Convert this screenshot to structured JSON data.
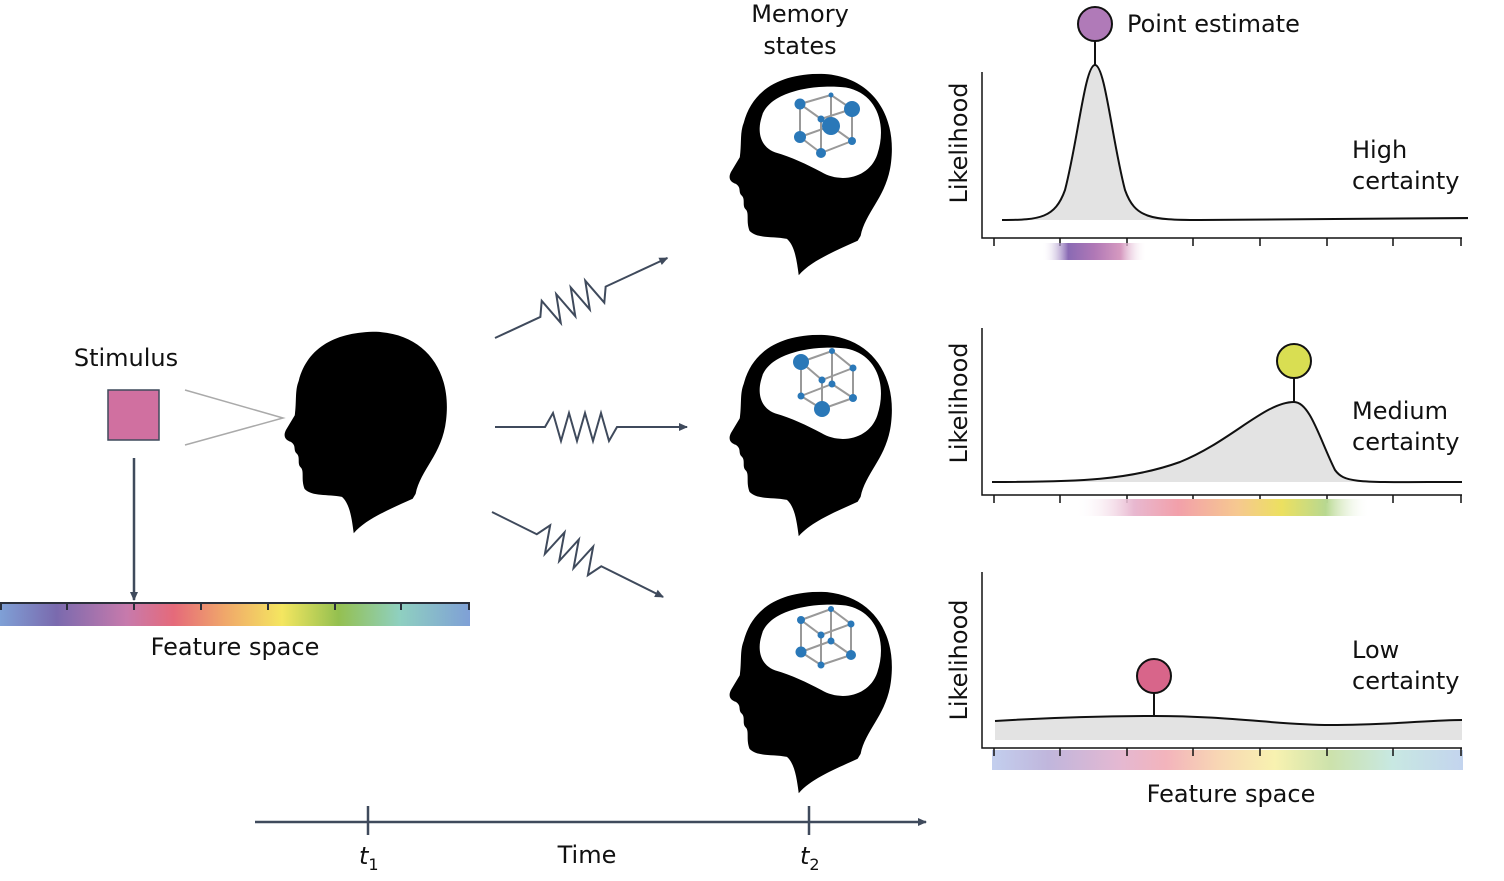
{
  "labels": {
    "stimulus": "Stimulus",
    "feature_space_left": "Feature space",
    "memory_states_line1": "Memory",
    "memory_states_line2": "states",
    "point_estimate": "Point estimate",
    "likelihood": "Likelihood",
    "feature_space_right": "Feature space",
    "time": "Time",
    "t1": "t",
    "t1_sub": "1",
    "t2": "t",
    "t2_sub": "2"
  },
  "panels": [
    {
      "certainty_line1": "High",
      "certainty_line2": "certainty",
      "marker_color": "#b07ab8"
    },
    {
      "certainty_line1": "Medium",
      "certainty_line2": "certainty",
      "marker_color": "#d9de52"
    },
    {
      "certainty_line1": "Low",
      "certainty_line2": "certainty",
      "marker_color": "#d8658a"
    }
  ],
  "colors": {
    "stimulus": "#d070a0",
    "arrow": "#3f4a5c",
    "memory_node": "#2a78b8",
    "curve_fill": "#e3e3e3"
  }
}
